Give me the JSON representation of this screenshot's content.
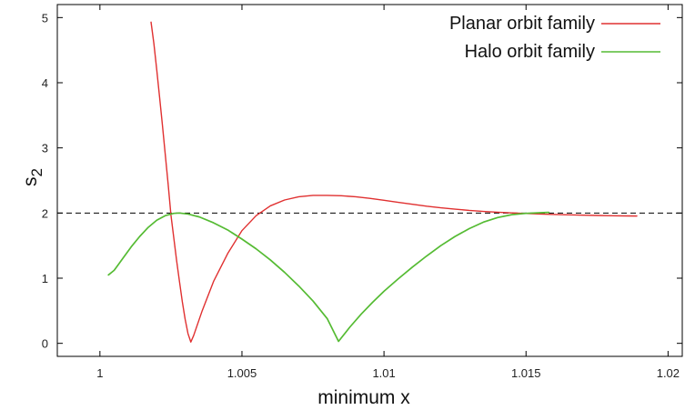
{
  "chart_data": {
    "type": "line",
    "title": "",
    "xlabel": "minimum x",
    "ylabel": "s",
    "ylabel_subscript": "2",
    "xlim": [
      0.9985,
      1.0205
    ],
    "ylim": [
      -0.2,
      5.2
    ],
    "x_ticks": [
      {
        "value": 1.0,
        "label": "1"
      },
      {
        "value": 1.005,
        "label": "1.005"
      },
      {
        "value": 1.01,
        "label": "1.01"
      },
      {
        "value": 1.015,
        "label": "1.015"
      },
      {
        "value": 1.02,
        "label": "1.02"
      }
    ],
    "y_ticks": [
      {
        "value": 0,
        "label": "0"
      },
      {
        "value": 1,
        "label": "1"
      },
      {
        "value": 2,
        "label": "2"
      },
      {
        "value": 3,
        "label": "3"
      },
      {
        "value": 4,
        "label": "4"
      },
      {
        "value": 5,
        "label": "5"
      }
    ],
    "grid": false,
    "legend_position": "top-right",
    "reference_line": {
      "y": 2,
      "style": "dashed",
      "color": "#000000"
    },
    "series": [
      {
        "name": "Planar orbit family",
        "color": "#e03030",
        "points": [
          [
            1.0018,
            4.93
          ],
          [
            1.0019,
            4.6
          ],
          [
            1.002,
            4.2
          ],
          [
            1.0021,
            3.78
          ],
          [
            1.0022,
            3.35
          ],
          [
            1.0023,
            2.9
          ],
          [
            1.0024,
            2.45
          ],
          [
            1.0025,
            1.97
          ],
          [
            1.0026,
            1.62
          ],
          [
            1.0027,
            1.27
          ],
          [
            1.0028,
            0.95
          ],
          [
            1.0029,
            0.64
          ],
          [
            1.003,
            0.37
          ],
          [
            1.0031,
            0.15
          ],
          [
            1.0032,
            0.02
          ],
          [
            1.0033,
            0.12
          ],
          [
            1.0036,
            0.5
          ],
          [
            1.004,
            0.95
          ],
          [
            1.0045,
            1.38
          ],
          [
            1.005,
            1.73
          ],
          [
            1.0055,
            1.96
          ],
          [
            1.006,
            2.11
          ],
          [
            1.0065,
            2.2
          ],
          [
            1.007,
            2.25
          ],
          [
            1.0075,
            2.27
          ],
          [
            1.008,
            2.27
          ],
          [
            1.0085,
            2.265
          ],
          [
            1.009,
            2.25
          ],
          [
            1.0095,
            2.225
          ],
          [
            1.01,
            2.195
          ],
          [
            1.0105,
            2.165
          ],
          [
            1.011,
            2.135
          ],
          [
            1.0115,
            2.105
          ],
          [
            1.012,
            2.08
          ],
          [
            1.0125,
            2.06
          ],
          [
            1.013,
            2.04
          ],
          [
            1.0135,
            2.025
          ],
          [
            1.014,
            2.012
          ],
          [
            1.0145,
            2.002
          ],
          [
            1.015,
            1.993
          ],
          [
            1.0155,
            1.985
          ],
          [
            1.016,
            1.978
          ],
          [
            1.0165,
            1.972
          ],
          [
            1.017,
            1.967
          ],
          [
            1.0175,
            1.963
          ],
          [
            1.018,
            1.959
          ],
          [
            1.0185,
            1.956
          ],
          [
            1.0189,
            1.954
          ]
        ]
      },
      {
        "name": "Halo orbit family",
        "color": "#55bb33",
        "points": [
          [
            1.0003,
            1.05
          ],
          [
            1.0005,
            1.12
          ],
          [
            1.0008,
            1.3
          ],
          [
            1.0011,
            1.48
          ],
          [
            1.0014,
            1.64
          ],
          [
            1.0017,
            1.78
          ],
          [
            1.002,
            1.89
          ],
          [
            1.0023,
            1.96
          ],
          [
            1.0026,
            1.995
          ],
          [
            1.0028,
            2.0
          ],
          [
            1.0031,
            1.985
          ],
          [
            1.0035,
            1.94
          ],
          [
            1.004,
            1.85
          ],
          [
            1.0045,
            1.74
          ],
          [
            1.005,
            1.6
          ],
          [
            1.0055,
            1.45
          ],
          [
            1.006,
            1.28
          ],
          [
            1.0065,
            1.09
          ],
          [
            1.007,
            0.88
          ],
          [
            1.0075,
            0.65
          ],
          [
            1.008,
            0.38
          ],
          [
            1.0084,
            0.03
          ],
          [
            1.0088,
            0.25
          ],
          [
            1.0092,
            0.45
          ],
          [
            1.0096,
            0.63
          ],
          [
            1.01,
            0.8
          ],
          [
            1.0105,
            0.99
          ],
          [
            1.011,
            1.17
          ],
          [
            1.0115,
            1.34
          ],
          [
            1.012,
            1.5
          ],
          [
            1.0125,
            1.64
          ],
          [
            1.013,
            1.76
          ],
          [
            1.0135,
            1.86
          ],
          [
            1.014,
            1.93
          ],
          [
            1.0145,
            1.975
          ],
          [
            1.015,
            1.995
          ],
          [
            1.0155,
            2.005
          ],
          [
            1.0158,
            2.01
          ]
        ]
      }
    ]
  }
}
